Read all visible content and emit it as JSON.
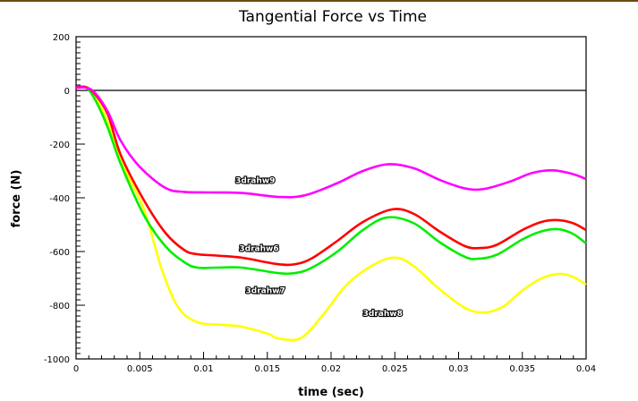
{
  "window": {
    "accent_color": "#6b4a12"
  },
  "chart_data": {
    "type": "line",
    "title": "Tangential Force vs Time",
    "xlabel": "time (sec)",
    "ylabel": "force (N)",
    "xlim": [
      0,
      0.04
    ],
    "ylim": [
      -1000,
      200
    ],
    "x_ticks": [
      0,
      0.005,
      0.01,
      0.015,
      0.02,
      0.025,
      0.03,
      0.035,
      0.04
    ],
    "x_tick_labels": [
      "0",
      "0.005",
      "0.01",
      "0.015",
      "0.02",
      "0.025",
      "0.03",
      "0.035",
      "0.04"
    ],
    "x_minor_step": 0.001,
    "y_ticks": [
      200,
      0,
      -200,
      -400,
      -600,
      -800,
      -1000
    ],
    "y_tick_labels": [
      "200",
      "0",
      "-200",
      "-400",
      "-600",
      "-800",
      "-1000"
    ],
    "y_minor_step": 20,
    "zero_line": true,
    "grid": false,
    "legend": "inline curve labels",
    "series": [
      {
        "name": "3drahw9",
        "color": "#ff00ff",
        "label_at": [
          0.0125,
          -345
        ],
        "x": [
          0,
          0.0008,
          0.0015,
          0.0025,
          0.0035,
          0.005,
          0.007,
          0.0085,
          0.0105,
          0.013,
          0.016,
          0.018,
          0.0205,
          0.0225,
          0.0245,
          0.0265,
          0.0285,
          0.0305,
          0.032,
          0.034,
          0.0358,
          0.0375,
          0.039,
          0.04
        ],
        "y": [
          10,
          10,
          -10,
          -80,
          -187,
          -285,
          -363,
          -378,
          -380,
          -382,
          -397,
          -390,
          -345,
          -300,
          -275,
          -290,
          -333,
          -365,
          -367,
          -340,
          -307,
          -298,
          -312,
          -330
        ]
      },
      {
        "name": "3drahw6",
        "color": "#ff0000",
        "label_at": [
          0.0128,
          -598
        ],
        "x": [
          0,
          0.0008,
          0.0015,
          0.0025,
          0.0035,
          0.0053,
          0.007,
          0.0085,
          0.0095,
          0.011,
          0.013,
          0.0158,
          0.0172,
          0.0185,
          0.0205,
          0.0225,
          0.0248,
          0.0265,
          0.0285,
          0.0305,
          0.0317,
          0.033,
          0.035,
          0.0365,
          0.0378,
          0.039,
          0.04
        ],
        "y": [
          12,
          12,
          -15,
          -90,
          -240,
          -407,
          -530,
          -595,
          -610,
          -615,
          -623,
          -647,
          -647,
          -625,
          -560,
          -490,
          -443,
          -460,
          -525,
          -580,
          -587,
          -575,
          -520,
          -490,
          -483,
          -495,
          -520
        ]
      },
      {
        "name": "3drahw7",
        "color": "#00ee00",
        "label_at": [
          0.0133,
          -755
        ],
        "x": [
          0,
          0.0008,
          0.0015,
          0.0025,
          0.0035,
          0.0053,
          0.007,
          0.0085,
          0.0095,
          0.011,
          0.013,
          0.0158,
          0.0172,
          0.0185,
          0.0205,
          0.0225,
          0.0244,
          0.0265,
          0.0285,
          0.0305,
          0.0315,
          0.033,
          0.035,
          0.0365,
          0.0378,
          0.039,
          0.04
        ],
        "y": [
          12,
          10,
          -35,
          -140,
          -273,
          -463,
          -580,
          -640,
          -660,
          -660,
          -660,
          -680,
          -680,
          -660,
          -600,
          -520,
          -473,
          -495,
          -565,
          -620,
          -627,
          -612,
          -555,
          -525,
          -517,
          -535,
          -570
        ]
      },
      {
        "name": "3drahw8",
        "color": "#ffff00",
        "label_at": [
          0.0225,
          -840
        ],
        "x": [
          0,
          0.0008,
          0.0015,
          0.0025,
          0.0035,
          0.0053,
          0.0067,
          0.008,
          0.0095,
          0.0115,
          0.013,
          0.0151,
          0.0158,
          0.0176,
          0.0193,
          0.0213,
          0.0235,
          0.0251,
          0.0265,
          0.0285,
          0.0305,
          0.032,
          0.0335,
          0.035,
          0.0365,
          0.0379,
          0.039,
          0.04
        ],
        "y": [
          12,
          12,
          -20,
          -120,
          -263,
          -440,
          -663,
          -807,
          -863,
          -873,
          -880,
          -907,
          -923,
          -923,
          -840,
          -720,
          -645,
          -623,
          -655,
          -740,
          -810,
          -827,
          -805,
          -745,
          -700,
          -683,
          -695,
          -723
        ]
      }
    ]
  }
}
